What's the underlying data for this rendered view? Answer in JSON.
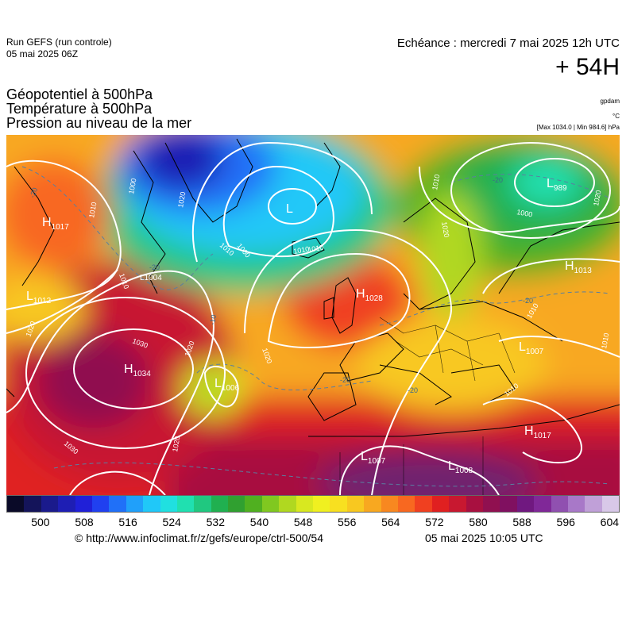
{
  "header": {
    "run": "Run GEFS (run controle)",
    "run_date": "05 mai 2025 06Z",
    "echeance": "Echéance : mercredi 7 mai 2025 12h UTC",
    "hour": "+ 54H"
  },
  "variables": [
    "Géopotentiel à 500hPa",
    "Température à 500hPa",
    "Pression au niveau de la mer"
  ],
  "units": {
    "geopotential": "gpdam",
    "temperature": "°C",
    "pressure": "[Max 1034.0 | Min 984.6] hPa"
  },
  "scale": {
    "ticks": [
      "500",
      "508",
      "516",
      "524",
      "532",
      "540",
      "548",
      "556",
      "564",
      "572",
      "580",
      "588",
      "596",
      "604"
    ],
    "colors": [
      "#0a0a28",
      "#14145a",
      "#1a1a8c",
      "#1e1eb4",
      "#2020d8",
      "#2040f0",
      "#2070f8",
      "#20a0fa",
      "#20c8f8",
      "#20e0e0",
      "#20e0b0",
      "#20c880",
      "#20b050",
      "#30a030",
      "#50b020",
      "#80c820",
      "#b0d820",
      "#d8e820",
      "#f0f020",
      "#f8e020",
      "#f8c820",
      "#f8a820",
      "#f88820",
      "#f86820",
      "#f04020",
      "#e02020",
      "#c81830",
      "#a81040",
      "#901050",
      "#801060",
      "#701880",
      "#802898",
      "#9050b0",
      "#a878c8",
      "#c0a0d8",
      "#d8c8e8"
    ]
  },
  "pressure_centers": [
    {
      "type": "H",
      "value": "1034"
    },
    {
      "type": "H",
      "value": "1028"
    },
    {
      "type": "H",
      "value": "1017"
    },
    {
      "type": "H",
      "value": "1013"
    },
    {
      "type": "H",
      "value": "1017"
    },
    {
      "type": "L",
      "value": "1012"
    },
    {
      "type": "L",
      "value": "1006"
    },
    {
      "type": "L",
      "value": "1007"
    },
    {
      "type": "L",
      "value": "1008"
    },
    {
      "type": "L",
      "value": "1007"
    },
    {
      "type": "L",
      "value": "1004"
    },
    {
      "type": "L",
      "value": ""
    },
    {
      "type": "L",
      "value": "989"
    }
  ],
  "isobar_labels": [
    "1030",
    "1020",
    "1010",
    "1000",
    "1020",
    "1020",
    "1030",
    "1020",
    "1020",
    "1010",
    "1000",
    "1010",
    "1020",
    "1010",
    "1010",
    "1010",
    "1020",
    "1000",
    "1010",
    "1010",
    "1010"
  ],
  "isotherm_labels": [
    "-20",
    "-20",
    "-20",
    "-20",
    "-20",
    "-20",
    "-10"
  ],
  "footer": {
    "credit": "© http://www.infoclimat.fr/z/gefs/europe/ctrl-500/54",
    "issued": "05 mai 2025 10:05 UTC"
  }
}
